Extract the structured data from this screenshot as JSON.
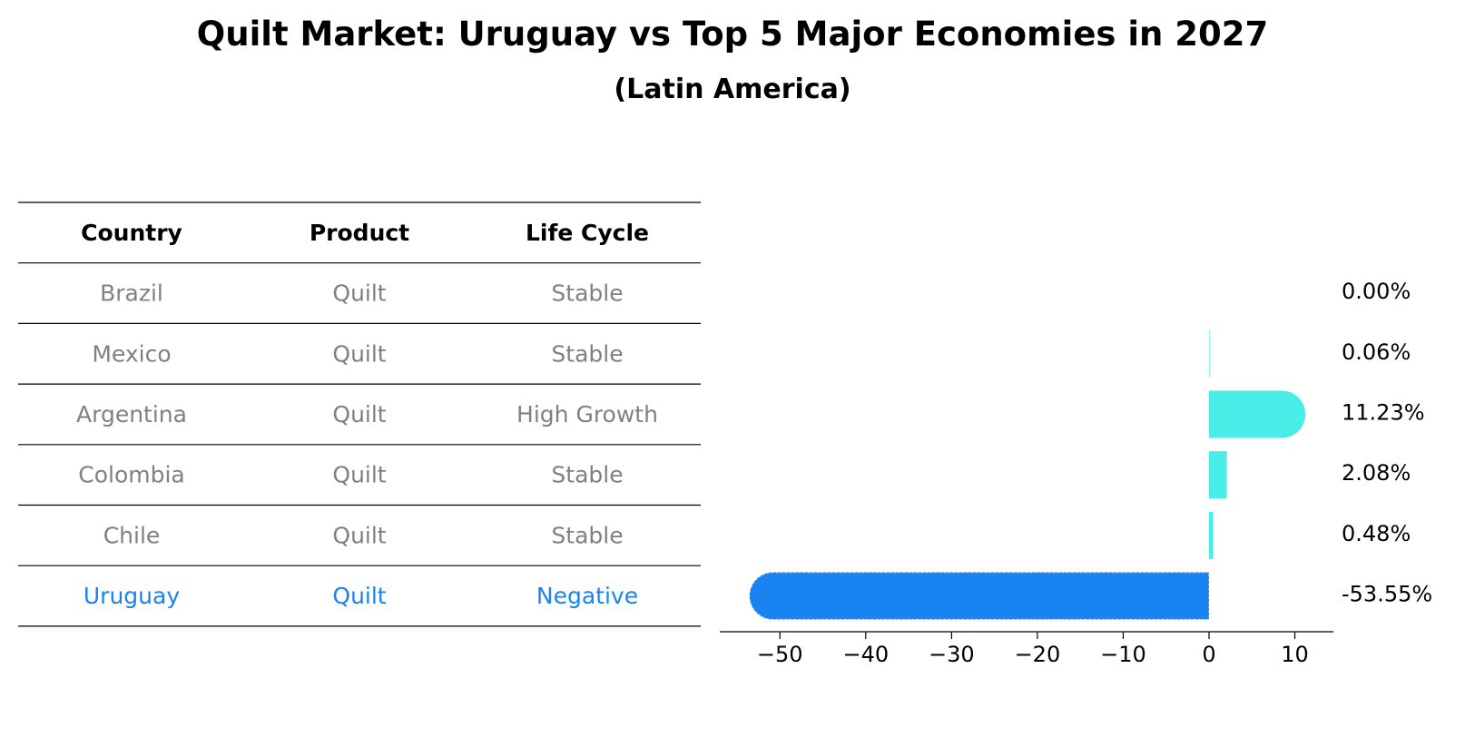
{
  "title": "Quilt Market: Uruguay vs Top 5 Major Economies in 2027",
  "subtitle": "(Latin America)",
  "colors": {
    "normal_text": "#808080",
    "highlight": "#1883f1",
    "bar_other": "#49eee8",
    "rule": "#000000"
  },
  "table": {
    "headers": [
      "Country",
      "Product",
      "Life Cycle"
    ],
    "rows": [
      {
        "country": "Brazil",
        "product": "Quilt",
        "life_cycle": "Stable",
        "highlight": false
      },
      {
        "country": "Mexico",
        "product": "Quilt",
        "life_cycle": "Stable",
        "highlight": false
      },
      {
        "country": "Argentina",
        "product": "Quilt",
        "life_cycle": "High Growth",
        "highlight": false
      },
      {
        "country": "Colombia",
        "product": "Quilt",
        "life_cycle": "Stable",
        "highlight": false
      },
      {
        "country": "Chile",
        "product": "Quilt",
        "life_cycle": "Stable",
        "highlight": false
      },
      {
        "country": "Uruguay",
        "product": "Quilt",
        "life_cycle": "Negative",
        "highlight": true
      }
    ]
  },
  "chart_data": {
    "type": "bar",
    "orientation": "horizontal",
    "title": "Quilt Market: Uruguay vs Top 5 Major Economies in 2027",
    "subtitle": "(Latin America)",
    "categories": [
      "Brazil",
      "Mexico",
      "Argentina",
      "Colombia",
      "Chile",
      "Uruguay"
    ],
    "values": [
      0.0,
      0.06,
      11.23,
      2.08,
      0.48,
      -53.55
    ],
    "value_labels": [
      "0.00%",
      "0.06%",
      "11.23%",
      "2.08%",
      "0.48%",
      "-53.55%"
    ],
    "xticks": [
      -50,
      -40,
      -30,
      -20,
      -10,
      0,
      10
    ],
    "xlim": [
      -57,
      14.5
    ],
    "highlight_category": "Uruguay",
    "grid": false,
    "legend": "none"
  }
}
